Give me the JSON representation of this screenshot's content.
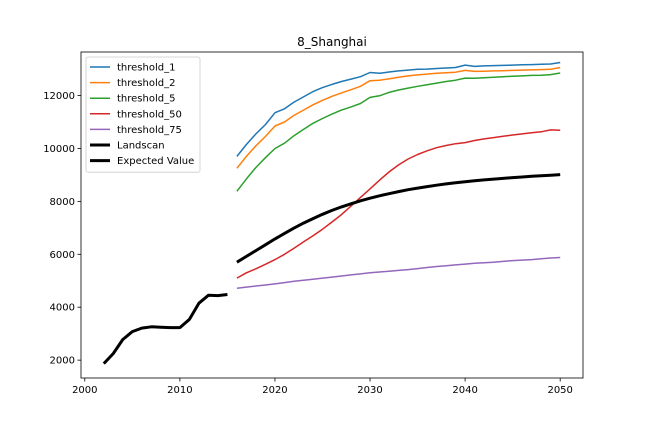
{
  "chart_data": {
    "type": "line",
    "title": "8_Shanghai",
    "xlabel": "",
    "ylabel": "",
    "xlim": [
      1999.6,
      2052.4
    ],
    "ylim": [
      1325,
      13645
    ],
    "xticks": [
      2000,
      2010,
      2020,
      2030,
      2040,
      2050
    ],
    "yticks": [
      2000,
      4000,
      6000,
      8000,
      10000,
      12000
    ],
    "grid": false,
    "legend_position": "top-left",
    "series": [
      {
        "name": "threshold_1",
        "color": "#1f77b4",
        "width": 1.5,
        "x": [
          2016,
          2017,
          2018,
          2019,
          2020,
          2021,
          2022,
          2023,
          2024,
          2025,
          2026,
          2027,
          2028,
          2029,
          2030,
          2031,
          2032,
          2033,
          2034,
          2035,
          2036,
          2037,
          2038,
          2039,
          2040,
          2041,
          2042,
          2043,
          2044,
          2045,
          2046,
          2047,
          2048,
          2049,
          2050
        ],
        "y": [
          9700,
          10150,
          10550,
          10900,
          11350,
          11500,
          11750,
          11950,
          12150,
          12300,
          12420,
          12530,
          12620,
          12710,
          12870,
          12840,
          12890,
          12930,
          12960,
          12990,
          13000,
          13020,
          13040,
          13060,
          13150,
          13100,
          13120,
          13130,
          13140,
          13150,
          13160,
          13170,
          13180,
          13190,
          13250
        ]
      },
      {
        "name": "threshold_2",
        "color": "#ff7f0e",
        "width": 1.5,
        "x": [
          2016,
          2017,
          2018,
          2019,
          2020,
          2021,
          2022,
          2023,
          2024,
          2025,
          2026,
          2027,
          2028,
          2029,
          2030,
          2031,
          2032,
          2033,
          2034,
          2035,
          2036,
          2037,
          2038,
          2039,
          2040,
          2041,
          2042,
          2043,
          2044,
          2045,
          2046,
          2047,
          2048,
          2049,
          2050
        ],
        "y": [
          9250,
          9700,
          10100,
          10450,
          10850,
          11000,
          11250,
          11450,
          11650,
          11820,
          11970,
          12100,
          12220,
          12350,
          12560,
          12580,
          12630,
          12690,
          12740,
          12780,
          12810,
          12840,
          12860,
          12880,
          12950,
          12910,
          12920,
          12930,
          12940,
          12950,
          12960,
          12970,
          12980,
          12990,
          13060
        ]
      },
      {
        "name": "threshold_5",
        "color": "#2ca02c",
        "width": 1.5,
        "x": [
          2016,
          2017,
          2018,
          2019,
          2020,
          2021,
          2022,
          2023,
          2024,
          2025,
          2026,
          2027,
          2028,
          2029,
          2030,
          2031,
          2032,
          2033,
          2034,
          2035,
          2036,
          2037,
          2038,
          2039,
          2040,
          2041,
          2042,
          2043,
          2044,
          2045,
          2046,
          2047,
          2048,
          2049,
          2050
        ],
        "y": [
          8380,
          8850,
          9280,
          9650,
          10000,
          10200,
          10480,
          10720,
          10950,
          11130,
          11300,
          11450,
          11570,
          11700,
          11930,
          11990,
          12120,
          12210,
          12280,
          12350,
          12410,
          12470,
          12530,
          12580,
          12660,
          12650,
          12670,
          12690,
          12710,
          12730,
          12740,
          12760,
          12770,
          12790,
          12850
        ]
      },
      {
        "name": "threshold_50",
        "color": "#d62728",
        "width": 1.5,
        "x": [
          2016,
          2017,
          2018,
          2019,
          2020,
          2021,
          2022,
          2023,
          2024,
          2025,
          2026,
          2027,
          2028,
          2029,
          2030,
          2031,
          2032,
          2033,
          2034,
          2035,
          2036,
          2037,
          2038,
          2039,
          2040,
          2041,
          2042,
          2043,
          2044,
          2045,
          2046,
          2047,
          2048,
          2049,
          2050
        ],
        "y": [
          5100,
          5300,
          5450,
          5620,
          5800,
          6000,
          6230,
          6470,
          6700,
          6950,
          7220,
          7500,
          7820,
          8150,
          8470,
          8800,
          9110,
          9380,
          9600,
          9770,
          9910,
          10030,
          10110,
          10180,
          10220,
          10300,
          10360,
          10410,
          10460,
          10510,
          10550,
          10590,
          10630,
          10700,
          10690
        ]
      },
      {
        "name": "threshold_75",
        "color": "#9467bd",
        "width": 1.5,
        "x": [
          2016,
          2017,
          2018,
          2019,
          2020,
          2021,
          2022,
          2023,
          2024,
          2025,
          2026,
          2027,
          2028,
          2029,
          2030,
          2031,
          2032,
          2033,
          2034,
          2035,
          2036,
          2037,
          2038,
          2039,
          2040,
          2041,
          2042,
          2043,
          2044,
          2045,
          2046,
          2047,
          2048,
          2049,
          2050
        ],
        "y": [
          4720,
          4760,
          4800,
          4840,
          4880,
          4930,
          4980,
          5020,
          5060,
          5100,
          5140,
          5180,
          5220,
          5260,
          5300,
          5330,
          5360,
          5390,
          5420,
          5460,
          5500,
          5540,
          5570,
          5600,
          5630,
          5660,
          5680,
          5700,
          5730,
          5760,
          5780,
          5800,
          5830,
          5860,
          5880
        ]
      },
      {
        "name": "Landscan",
        "color": "#000000",
        "width": 3,
        "x": [
          2002,
          2003,
          2004,
          2005,
          2006,
          2007,
          2008,
          2009,
          2010,
          2011,
          2012,
          2013,
          2014,
          2015
        ],
        "y": [
          1870,
          2250,
          2780,
          3080,
          3210,
          3260,
          3240,
          3230,
          3230,
          3540,
          4150,
          4450,
          4440,
          4480
        ]
      },
      {
        "name": "Expected Value",
        "color": "#000000",
        "width": 3,
        "x": [
          2016,
          2017,
          2018,
          2019,
          2020,
          2021,
          2022,
          2023,
          2024,
          2025,
          2026,
          2027,
          2028,
          2029,
          2030,
          2031,
          2032,
          2033,
          2034,
          2035,
          2036,
          2037,
          2038,
          2039,
          2040,
          2041,
          2042,
          2043,
          2044,
          2045,
          2046,
          2047,
          2048,
          2049,
          2050
        ],
        "y": [
          5700,
          5920,
          6140,
          6360,
          6580,
          6790,
          6990,
          7180,
          7350,
          7510,
          7660,
          7790,
          7910,
          8020,
          8120,
          8210,
          8290,
          8370,
          8440,
          8500,
          8560,
          8610,
          8660,
          8700,
          8740,
          8780,
          8810,
          8840,
          8870,
          8900,
          8920,
          8950,
          8970,
          8990,
          9010
        ]
      }
    ]
  }
}
